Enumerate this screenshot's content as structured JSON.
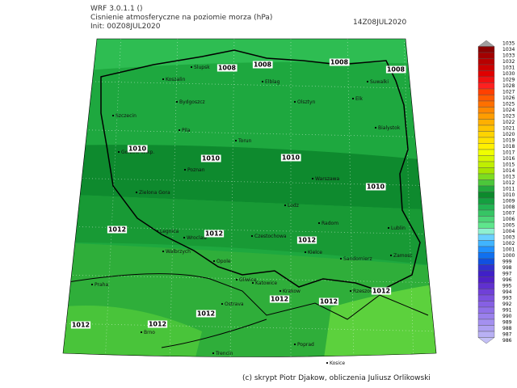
{
  "header": {
    "model": "WRF 3.0.1.1 ()",
    "variable": "Cisnienie atmosferyczne na poziomie morza (hPa)",
    "init": "Init: 00Z08JUL2020",
    "valid": "14Z08JUL2020"
  },
  "isobar_labels": [
    "1008",
    "1008",
    "1008",
    "1008",
    "1010",
    "1010",
    "1010",
    "1010",
    "1012",
    "1012",
    "1012",
    "1012",
    "1012",
    "1012",
    "1012",
    "1012",
    "1012"
  ],
  "cities": [
    "Slupsk",
    "Koszalin",
    "Elblag",
    "Olsztyn",
    "Elk",
    "Suwalki",
    "Szczecin",
    "Gorzow Wlkp.",
    "Pila",
    "Bydgoszcz",
    "Torun",
    "Bialystok",
    "Poznan",
    "Warszawa",
    "Zielona Gora",
    "Lodz",
    "Radom",
    "Lublin",
    "Legnica",
    "Wroclaw",
    "Czestochowa",
    "Kielce",
    "Walbrzych",
    "Opole",
    "Sandomierz",
    "Zamosc",
    "Praha",
    "Gliwice",
    "Katowice",
    "Krakow",
    "Rzeszow",
    "Ostrava",
    "Brno",
    "Trencin",
    "Poprad",
    "Kosice"
  ],
  "colorbar": {
    "levels": [
      1035,
      1034,
      1033,
      1032,
      1031,
      1030,
      1029,
      1028,
      1027,
      1026,
      1025,
      1024,
      1023,
      1022,
      1021,
      1020,
      1019,
      1018,
      1017,
      1016,
      1015,
      1014,
      1013,
      1012,
      1011,
      1010,
      1009,
      1008,
      1007,
      1006,
      1005,
      1004,
      1003,
      1002,
      1001,
      1000,
      999,
      998,
      997,
      996,
      995,
      994,
      993,
      992,
      991,
      990,
      989,
      988,
      987,
      986
    ]
  },
  "footer": "(c) skrypt Piotr Djakow, obliczenia Juliusz Orlikowski"
}
